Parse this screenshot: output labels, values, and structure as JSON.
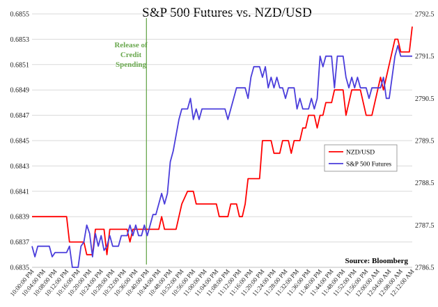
{
  "chart_data": {
    "type": "line",
    "title": "S&P 500 Futures vs. NZD/USD",
    "source": "Source: Bloomberg",
    "annotation": {
      "lines": [
        "Release of",
        "Credit",
        "Spending"
      ],
      "x_index": 39,
      "color": "#6aa84f"
    },
    "y_left": {
      "series": "NZD/USD",
      "ylim": [
        0.6835,
        0.6855
      ],
      "ticks": [
        "0.6835",
        "0.6837",
        "0.6839",
        "0.6841",
        "0.6843",
        "0.6845",
        "0.6847",
        "0.6849",
        "0.6851",
        "0.6853",
        "0.6855"
      ]
    },
    "y_right": {
      "series": "S&P 500 Futures",
      "ylim": [
        2786.5,
        2792.5
      ],
      "ticks": [
        "2786.5",
        "2787.5",
        "2788.5",
        "2789.5",
        "2790.5",
        "2791.5",
        "2792.5"
      ]
    },
    "x_labels": [
      "10:00:00 PM",
      "10:04:00 PM",
      "10:08:00 PM",
      "10:12:00 PM",
      "10:16:00 PM",
      "10:20:00 PM",
      "10:24:00 PM",
      "10:28:00 PM",
      "10:32:00 PM",
      "10:36:00 PM",
      "10:40:00 PM",
      "10:44:00 PM",
      "10:48:00 PM",
      "10:52:00 PM",
      "10:56:00 PM",
      "11:00:00 PM",
      "11:04:00 PM",
      "11:08:00 PM",
      "11:12:00 PM",
      "11:16:00 PM",
      "11:20:00 PM",
      "11:24:00 PM",
      "11:28:00 PM",
      "11:32:00 PM",
      "11:36:00 PM",
      "11:40:00 PM",
      "11:44:00 PM",
      "11:48:00 PM",
      "11:52:00 PM",
      "11:56:00 PM",
      "12:00:00 AM",
      "12:04:00 AM",
      "12:08:00 AM",
      "12:12:00 AM"
    ],
    "x_label_step": 4,
    "n_points": 133,
    "series": [
      {
        "name": "NZD/USD",
        "color": "#ff0000",
        "axis": "left",
        "keypoints": [
          [
            0,
            0.6839
          ],
          [
            12,
            0.6839
          ],
          [
            13,
            0.6837
          ],
          [
            18,
            0.6837
          ],
          [
            19,
            0.6836
          ],
          [
            21,
            0.6836
          ],
          [
            22,
            0.6838
          ],
          [
            25,
            0.6838
          ],
          [
            26,
            0.6836
          ],
          [
            27,
            0.6838
          ],
          [
            33,
            0.6838
          ],
          [
            34,
            0.6837
          ],
          [
            35,
            0.6838
          ],
          [
            44,
            0.6838
          ],
          [
            45,
            0.6839
          ],
          [
            46,
            0.6838
          ],
          [
            50,
            0.6838
          ],
          [
            51,
            0.6839
          ],
          [
            52,
            0.684
          ],
          [
            54,
            0.6841
          ],
          [
            56,
            0.6841
          ],
          [
            57,
            0.684
          ],
          [
            64,
            0.684
          ],
          [
            65,
            0.6839
          ],
          [
            68,
            0.6839
          ],
          [
            69,
            0.684
          ],
          [
            71,
            0.684
          ],
          [
            72,
            0.6839
          ],
          [
            73,
            0.6839
          ],
          [
            74,
            0.684
          ],
          [
            75,
            0.6842
          ],
          [
            79,
            0.6842
          ],
          [
            80,
            0.6845
          ],
          [
            83,
            0.6845
          ],
          [
            84,
            0.6844
          ],
          [
            86,
            0.6844
          ],
          [
            87,
            0.6845
          ],
          [
            89,
            0.6845
          ],
          [
            90,
            0.6844
          ],
          [
            91,
            0.6845
          ],
          [
            93,
            0.6845
          ],
          [
            94,
            0.6846
          ],
          [
            95,
            0.6846
          ],
          [
            96,
            0.6847
          ],
          [
            98,
            0.6847
          ],
          [
            99,
            0.6846
          ],
          [
            100,
            0.6847
          ],
          [
            101,
            0.6847
          ],
          [
            102,
            0.6848
          ],
          [
            104,
            0.6848
          ],
          [
            105,
            0.6849
          ],
          [
            108,
            0.6849
          ],
          [
            109,
            0.6847
          ],
          [
            110,
            0.6848
          ],
          [
            111,
            0.6849
          ],
          [
            114,
            0.6849
          ],
          [
            115,
            0.6848
          ],
          [
            116,
            0.6847
          ],
          [
            118,
            0.6847
          ],
          [
            119,
            0.6848
          ],
          [
            120,
            0.6849
          ],
          [
            121,
            0.685
          ],
          [
            122,
            0.6849
          ],
          [
            124,
            0.6851
          ],
          [
            125,
            0.6852
          ],
          [
            126,
            0.6853
          ],
          [
            127,
            0.6853
          ],
          [
            128,
            0.6852
          ],
          [
            131,
            0.6852
          ],
          [
            132,
            0.6854
          ]
        ]
      },
      {
        "name": "S&P 500 Futures",
        "color": "#4a3ddb",
        "axis": "right",
        "keypoints": [
          [
            0,
            2787.0
          ],
          [
            1,
            2786.75
          ],
          [
            2,
            2787.0
          ],
          [
            6,
            2787.0
          ],
          [
            7,
            2786.75
          ],
          [
            8,
            2786.85
          ],
          [
            12,
            2786.85
          ],
          [
            13,
            2787.0
          ],
          [
            14,
            2786.5
          ],
          [
            16,
            2786.5
          ],
          [
            17,
            2787.0
          ],
          [
            18,
            2787.1
          ],
          [
            19,
            2787.5
          ],
          [
            20,
            2787.3
          ],
          [
            21,
            2786.75
          ],
          [
            22,
            2787.3
          ],
          [
            23,
            2787.0
          ],
          [
            24,
            2787.25
          ],
          [
            25,
            2786.9
          ],
          [
            26,
            2787.0
          ],
          [
            27,
            2787.25
          ],
          [
            28,
            2787.0
          ],
          [
            30,
            2787.0
          ],
          [
            31,
            2787.25
          ],
          [
            33,
            2787.25
          ],
          [
            34,
            2787.5
          ],
          [
            35,
            2787.25
          ],
          [
            36,
            2787.5
          ],
          [
            37,
            2787.25
          ],
          [
            38,
            2787.25
          ],
          [
            39,
            2787.5
          ],
          [
            40,
            2787.25
          ],
          [
            41,
            2787.5
          ],
          [
            42,
            2787.75
          ],
          [
            43,
            2787.75
          ],
          [
            44,
            2788.0
          ],
          [
            45,
            2788.25
          ],
          [
            46,
            2788.0
          ],
          [
            47,
            2788.25
          ],
          [
            48,
            2789.0
          ],
          [
            49,
            2789.25
          ],
          [
            51,
            2790.0
          ],
          [
            52,
            2790.25
          ],
          [
            53,
            2790.25
          ],
          [
            54,
            2790.25
          ],
          [
            55,
            2790.5
          ],
          [
            56,
            2790.0
          ],
          [
            57,
            2790.25
          ],
          [
            58,
            2790.0
          ],
          [
            59,
            2790.25
          ],
          [
            67,
            2790.25
          ],
          [
            68,
            2790.0
          ],
          [
            69,
            2790.25
          ],
          [
            70,
            2790.5
          ],
          [
            71,
            2790.75
          ],
          [
            74,
            2790.75
          ],
          [
            75,
            2790.5
          ],
          [
            76,
            2791.0
          ],
          [
            77,
            2791.25
          ],
          [
            79,
            2791.25
          ],
          [
            80,
            2791.0
          ],
          [
            81,
            2791.25
          ],
          [
            82,
            2790.75
          ],
          [
            83,
            2791.0
          ],
          [
            84,
            2790.75
          ],
          [
            85,
            2791.0
          ],
          [
            86,
            2790.75
          ],
          [
            87,
            2790.75
          ],
          [
            88,
            2790.5
          ],
          [
            89,
            2790.75
          ],
          [
            91,
            2790.75
          ],
          [
            92,
            2790.25
          ],
          [
            93,
            2790.5
          ],
          [
            94,
            2790.25
          ],
          [
            96,
            2790.25
          ],
          [
            97,
            2790.5
          ],
          [
            98,
            2790.25
          ],
          [
            99,
            2790.5
          ],
          [
            100,
            2791.5
          ],
          [
            101,
            2791.25
          ],
          [
            102,
            2791.5
          ],
          [
            104,
            2791.5
          ],
          [
            105,
            2790.75
          ],
          [
            106,
            2791.5
          ],
          [
            108,
            2791.5
          ],
          [
            109,
            2791.0
          ],
          [
            110,
            2790.75
          ],
          [
            111,
            2791.0
          ],
          [
            112,
            2790.75
          ],
          [
            113,
            2791.0
          ],
          [
            114,
            2790.75
          ],
          [
            116,
            2790.75
          ],
          [
            117,
            2790.5
          ],
          [
            118,
            2790.75
          ],
          [
            121,
            2790.75
          ],
          [
            122,
            2791.0
          ],
          [
            123,
            2790.5
          ],
          [
            124,
            2790.5
          ],
          [
            125,
            2791.0
          ],
          [
            126,
            2791.5
          ],
          [
            127,
            2791.75
          ],
          [
            128,
            2791.5
          ]
        ]
      }
    ],
    "legend": [
      {
        "label": "NZD/USD",
        "color": "#ff0000"
      },
      {
        "label": "S&P 500 Futures",
        "color": "#4a3ddb"
      }
    ]
  }
}
